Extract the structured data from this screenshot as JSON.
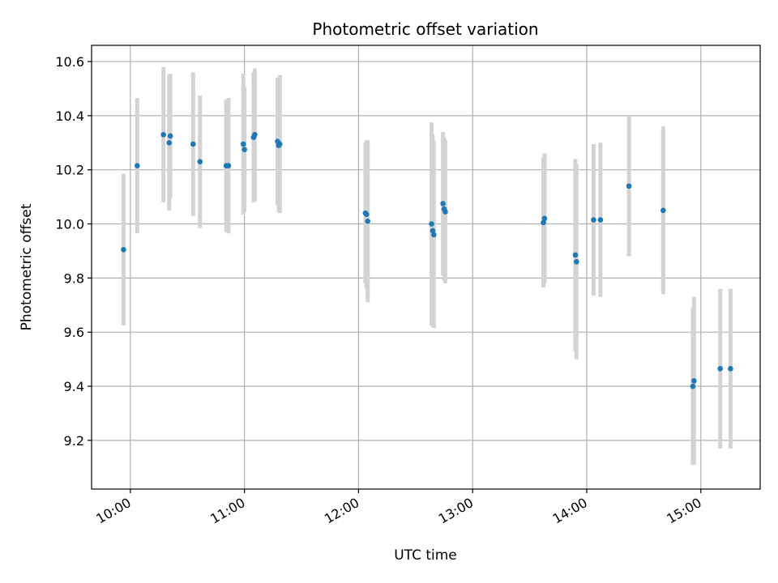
{
  "chart_data": {
    "type": "scatter",
    "title": "Photometric offset variation",
    "xlabel": "UTC time",
    "ylabel": "Photometric offset",
    "xlim": [
      9.66,
      15.52
    ],
    "ylim": [
      9.02,
      10.66
    ],
    "x_ticks": [
      {
        "value": 10,
        "label": "10:00"
      },
      {
        "value": 11,
        "label": "11:00"
      },
      {
        "value": 12,
        "label": "12:00"
      },
      {
        "value": 13,
        "label": "13:00"
      },
      {
        "value": 14,
        "label": "14:00"
      },
      {
        "value": 15,
        "label": "15:00"
      }
    ],
    "y_ticks": [
      {
        "value": 9.2,
        "label": "9.2"
      },
      {
        "value": 9.4,
        "label": "9.4"
      },
      {
        "value": 9.6,
        "label": "9.6"
      },
      {
        "value": 9.8,
        "label": "9.8"
      },
      {
        "value": 10.0,
        "label": "10.0"
      },
      {
        "value": 10.2,
        "label": "10.2"
      },
      {
        "value": 10.4,
        "label": "10.4"
      },
      {
        "value": 10.6,
        "label": "10.6"
      }
    ],
    "grid": true,
    "point_color": "#1f77b4",
    "errorbar_color": "#d3d3d3",
    "points": [
      {
        "x": 9.94,
        "y": 9.905,
        "err": 0.28
      },
      {
        "x": 10.06,
        "y": 10.215,
        "err": 0.25
      },
      {
        "x": 10.29,
        "y": 10.33,
        "err": 0.25
      },
      {
        "x": 10.34,
        "y": 10.3,
        "err": 0.25
      },
      {
        "x": 10.35,
        "y": 10.325,
        "err": 0.23
      },
      {
        "x": 10.55,
        "y": 10.295,
        "err": 0.265
      },
      {
        "x": 10.61,
        "y": 10.23,
        "err": 0.245
      },
      {
        "x": 10.84,
        "y": 10.215,
        "err": 0.245
      },
      {
        "x": 10.86,
        "y": 10.215,
        "err": 0.25
      },
      {
        "x": 10.99,
        "y": 10.295,
        "err": 0.26
      },
      {
        "x": 11.0,
        "y": 10.275,
        "err": 0.23
      },
      {
        "x": 11.08,
        "y": 10.32,
        "err": 0.24
      },
      {
        "x": 11.09,
        "y": 10.33,
        "err": 0.245
      },
      {
        "x": 11.29,
        "y": 10.305,
        "err": 0.235
      },
      {
        "x": 11.3,
        "y": 10.29,
        "err": 0.245
      },
      {
        "x": 11.31,
        "y": 10.295,
        "err": 0.255
      },
      {
        "x": 12.06,
        "y": 10.04,
        "err": 0.26
      },
      {
        "x": 12.07,
        "y": 10.035,
        "err": 0.275
      },
      {
        "x": 12.08,
        "y": 10.01,
        "err": 0.3
      },
      {
        "x": 12.64,
        "y": 10.0,
        "err": 0.375
      },
      {
        "x": 12.65,
        "y": 9.975,
        "err": 0.355
      },
      {
        "x": 12.66,
        "y": 9.96,
        "err": 0.345
      },
      {
        "x": 12.74,
        "y": 10.075,
        "err": 0.265
      },
      {
        "x": 12.75,
        "y": 10.055,
        "err": 0.265
      },
      {
        "x": 12.76,
        "y": 10.045,
        "err": 0.265
      },
      {
        "x": 13.62,
        "y": 10.005,
        "err": 0.24
      },
      {
        "x": 13.63,
        "y": 10.02,
        "err": 0.24
      },
      {
        "x": 13.9,
        "y": 9.885,
        "err": 0.355
      },
      {
        "x": 13.91,
        "y": 9.86,
        "err": 0.36
      },
      {
        "x": 14.06,
        "y": 10.015,
        "err": 0.28
      },
      {
        "x": 14.12,
        "y": 10.015,
        "err": 0.285
      },
      {
        "x": 14.37,
        "y": 10.14,
        "err": 0.26
      },
      {
        "x": 14.67,
        "y": 10.05,
        "err": 0.31
      },
      {
        "x": 14.93,
        "y": 9.4,
        "err": 0.29
      },
      {
        "x": 14.94,
        "y": 9.42,
        "err": 0.31
      },
      {
        "x": 15.17,
        "y": 9.465,
        "err": 0.295
      },
      {
        "x": 15.26,
        "y": 9.465,
        "err": 0.295
      }
    ]
  }
}
